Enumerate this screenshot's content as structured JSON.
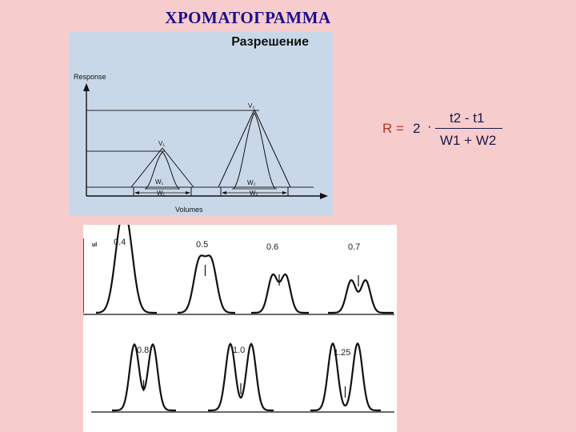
{
  "page": {
    "title": "ХРОМАТОГРАММА"
  },
  "diagram": {
    "heading": "Разрешение",
    "y_axis_label": "Response",
    "x_axis_label": "Volumes",
    "peak1_label": "V₁",
    "peak2_label": "V₂",
    "width1_top_label": "W₁",
    "width1_bottom_label": "W₁",
    "width2_top_label": "W₂",
    "width2_bottom_label": "W₂"
  },
  "formula": {
    "lhs": "R =",
    "factor": "2",
    "operator": "·",
    "numerator": "t2 - t1",
    "denominator": "W1 + W2"
  },
  "chromatograms": {
    "axis_label": "ul",
    "examples": [
      {
        "resolution": "0.4"
      },
      {
        "resolution": "0.5"
      },
      {
        "resolution": "0.6"
      },
      {
        "resolution": "0.7"
      },
      {
        "resolution": "0.8"
      },
      {
        "resolution": "1.0"
      },
      {
        "resolution": "1.25"
      }
    ]
  },
  "colors": {
    "background": "#f7cccc",
    "panel": "#c9d8e8",
    "title": "#1a0f8a",
    "formula_lhs": "#b0352b"
  }
}
